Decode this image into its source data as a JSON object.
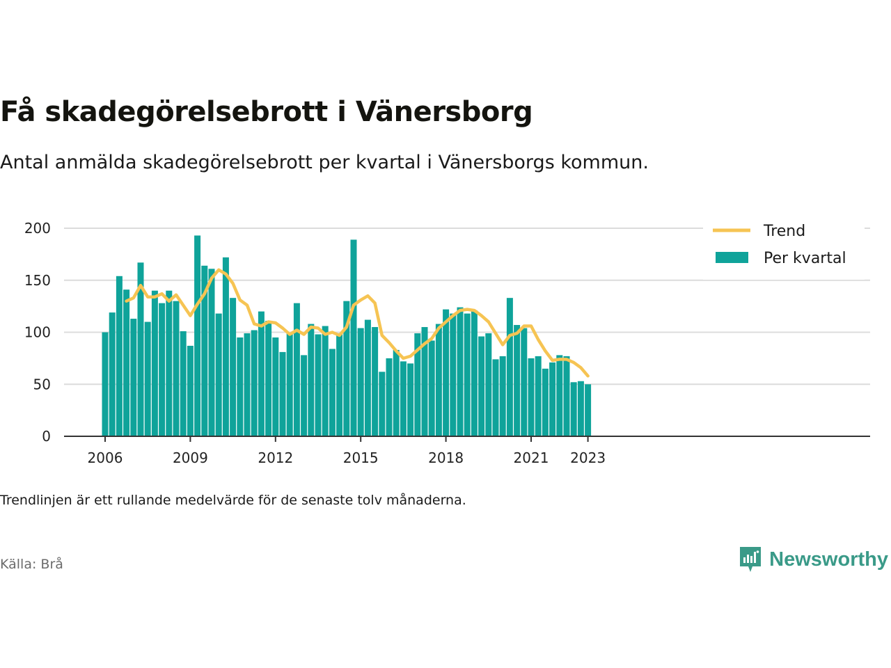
{
  "title": "Få skadegörelsebrott i Vänersborg",
  "subtitle": "Antal anmälda skadegörelsebrott per kvartal i Vänersborgs kommun.",
  "footnote": "Trendlinjen är ett rullande medelvärde för de senaste tolv månaderna.",
  "source": "Källa: Brå",
  "brand": {
    "name": "Newsworthy",
    "icon": "newsworthy-logo-icon",
    "color": "#3a9a88"
  },
  "colors": {
    "bars": "#0fa39a",
    "trend": "#f6c453",
    "grid": "#dcdcdc",
    "axis": "#333333"
  },
  "chart_data": {
    "type": "bar",
    "x_unit": "quarter",
    "x_start": "2006 Q1",
    "ylim": [
      0,
      200
    ],
    "yticks": [
      0,
      50,
      100,
      150,
      200
    ],
    "xticks": [
      "2006",
      "2009",
      "2012",
      "2015",
      "2018",
      "2021",
      "2023"
    ],
    "grid": true,
    "legend_position": "top-right",
    "series": [
      {
        "name": "Per kvartal",
        "type": "bar",
        "values": [
          100,
          119,
          154,
          141,
          113,
          167,
          110,
          140,
          128,
          140,
          130,
          101,
          87,
          193,
          164,
          161,
          118,
          172,
          133,
          95,
          99,
          102,
          120,
          111,
          95,
          81,
          99,
          128,
          78,
          108,
          98,
          106,
          84,
          99,
          130,
          189,
          104,
          112,
          105,
          62,
          75,
          83,
          72,
          70,
          99,
          105,
          92,
          108,
          122,
          118,
          124,
          118,
          121,
          96,
          99,
          74,
          77,
          133,
          107,
          104,
          75,
          77,
          65,
          71,
          78,
          77,
          52,
          53,
          50
        ]
      },
      {
        "name": "Trend",
        "type": "line",
        "start_index": 3,
        "values": [
          130,
          133,
          145,
          134,
          134,
          137,
          130,
          136,
          126,
          116,
          127,
          137,
          152,
          160,
          156,
          147,
          131,
          126,
          108,
          106,
          110,
          109,
          104,
          98,
          102,
          98,
          105,
          104,
          98,
          100,
          97,
          105,
          126,
          131,
          135,
          128,
          97,
          90,
          82,
          75,
          77,
          83,
          89,
          94,
          104,
          110,
          116,
          121,
          122,
          121,
          116,
          110,
          99,
          88,
          97,
          99,
          106,
          106,
          93,
          82,
          73,
          74,
          74,
          71,
          66,
          58
        ]
      }
    ]
  }
}
